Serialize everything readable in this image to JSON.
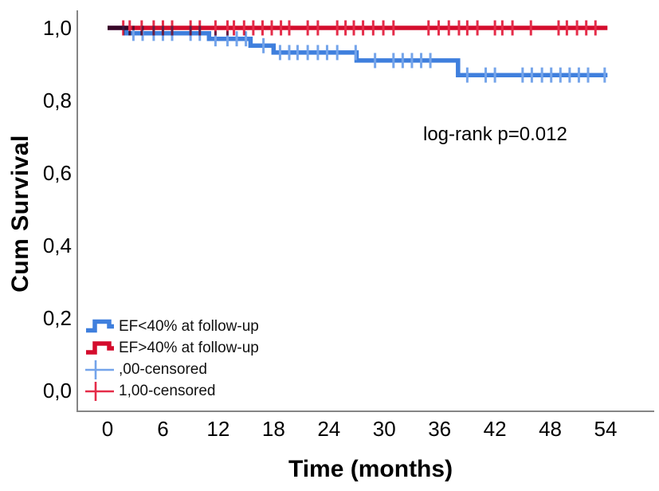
{
  "figure": {
    "background": "#ffffff"
  },
  "chart_data": {
    "type": "line",
    "subtype": "kaplan-meier-step",
    "title": "",
    "xlabel": "Time (months)",
    "ylabel": "Cum Survival",
    "annotation": "log-rank p=0.012",
    "grid": false,
    "legend_position": "lower-left-inside",
    "axis_color": "#858585",
    "text_color": "#000000",
    "xlim": [
      0,
      54.5
    ],
    "ylim": [
      0.0,
      1.05
    ],
    "x_ticks": [
      0,
      6,
      12,
      18,
      24,
      30,
      36,
      42,
      48,
      54
    ],
    "y_ticks": [
      {
        "label": "1,0",
        "value": 1.0
      },
      {
        "label": "0,8",
        "value": 0.8
      },
      {
        "label": "0,6",
        "value": 0.6
      },
      {
        "label": "0,4",
        "value": 0.4
      },
      {
        "label": "0,2",
        "value": 0.2
      },
      {
        "label": "0,0",
        "value": 0.0
      }
    ],
    "series": [
      {
        "name": "EF<40% at follow-up",
        "color": "#3f7fdd",
        "censor_color": "#74a4ea",
        "censor_label": ",00-censored",
        "symbol": "step-line-icon",
        "censor_symbol": "plus-icon",
        "steps": [
          [
            0,
            1.0
          ],
          [
            2,
            0.985
          ],
          [
            11,
            0.97
          ],
          [
            15.5,
            0.951
          ],
          [
            18,
            0.932
          ],
          [
            27,
            0.91
          ],
          [
            38,
            0.87
          ]
        ],
        "end_t": 54.2,
        "censor_times": [
          2.8,
          3.8,
          5,
          6,
          7,
          9,
          10,
          11.7,
          13,
          14,
          15,
          16.9,
          18.7,
          19.7,
          20.6,
          21.7,
          22.8,
          23.8,
          24.9,
          26.9,
          29,
          31,
          32,
          33,
          34,
          35,
          39,
          41,
          42,
          45,
          46,
          47.1,
          48.1,
          49.1,
          50.1,
          51.1,
          52.1,
          53.9
        ]
      },
      {
        "name": "EF>40% at follow-up",
        "color": "#d40c2c",
        "censor_color": "#e52c49",
        "censor_label": "1,00-censored",
        "symbol": "step-line-icon",
        "censor_symbol": "plus-icon",
        "steps": [
          [
            0,
            1.0
          ]
        ],
        "end_t": 54.2,
        "censor_times": [
          1.7,
          2.4,
          3.7,
          5,
          6,
          7,
          9,
          10,
          11.7,
          13,
          13.7,
          14.8,
          15.8,
          16.8,
          17.8,
          18.8,
          19.7,
          21.7,
          22.8,
          24.9,
          25.8,
          26.7,
          27.7,
          28.8,
          29.9,
          31,
          34.8,
          35.9,
          37,
          38.1,
          39,
          40.1,
          42,
          42.8,
          43.9,
          45.9,
          48.9,
          49.8,
          50.9,
          51.9,
          52.9
        ]
      }
    ]
  }
}
